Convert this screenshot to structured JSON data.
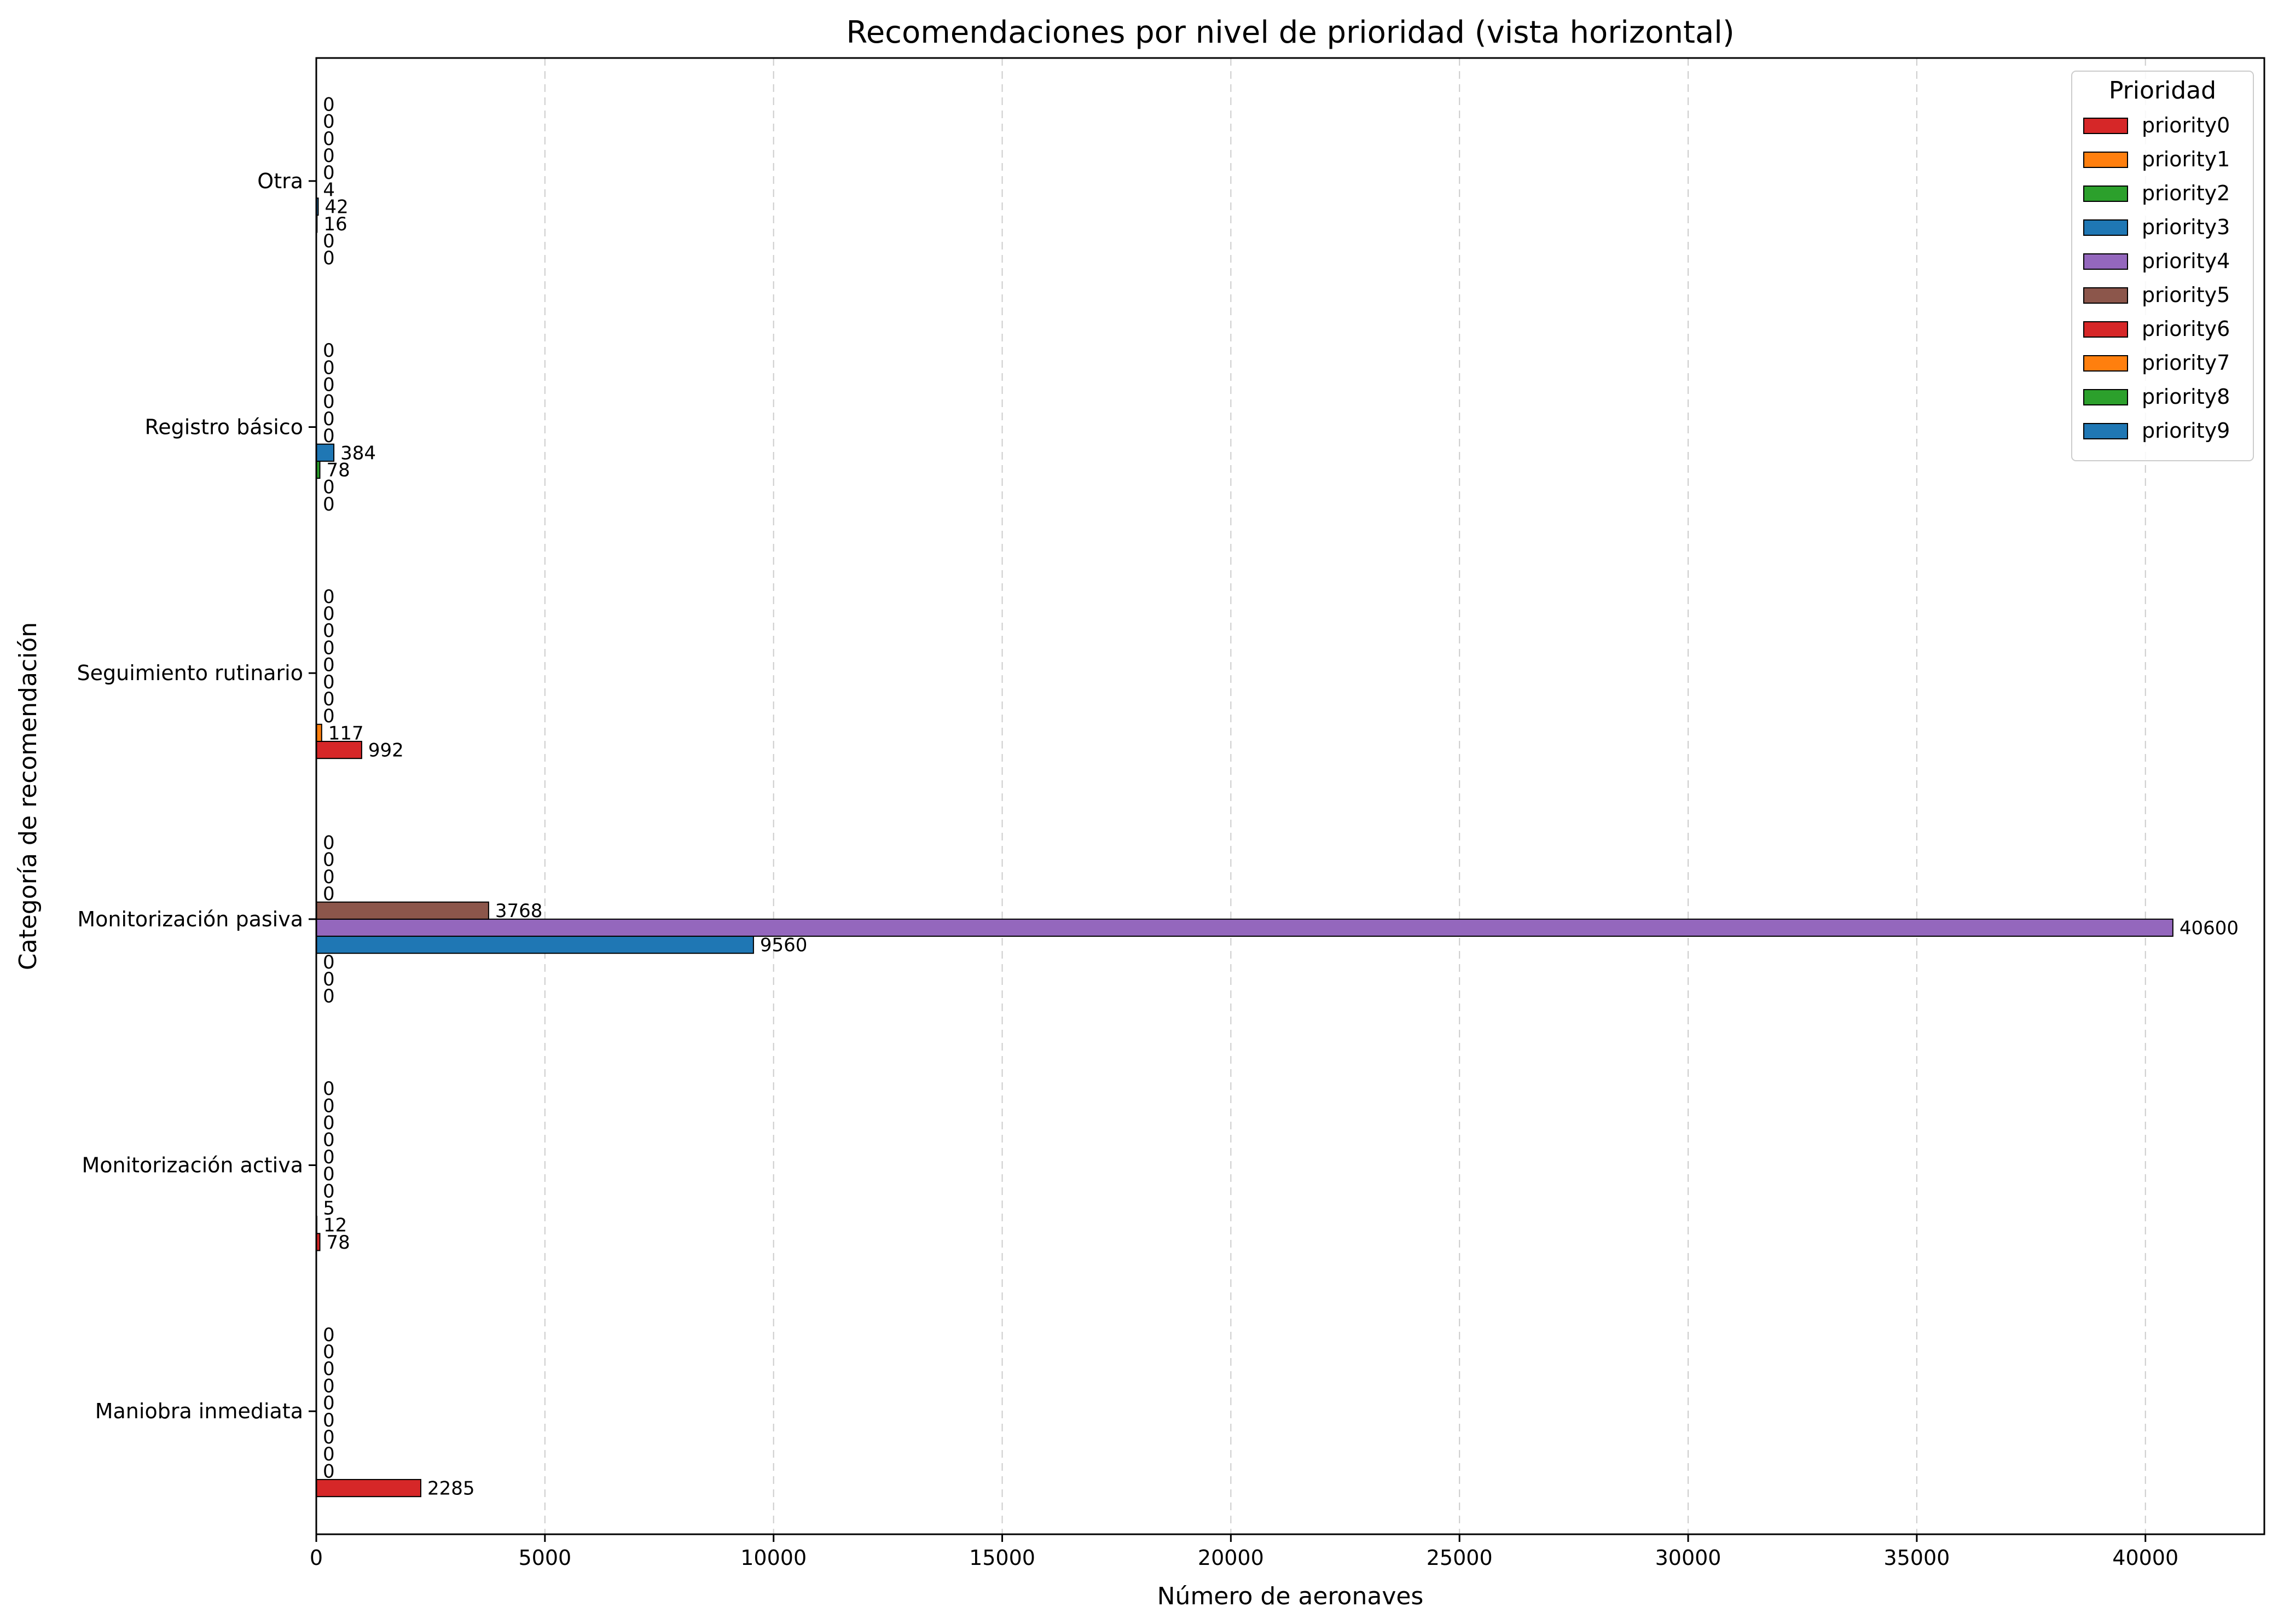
{
  "chart_data": {
    "type": "bar",
    "orientation": "horizontal",
    "title": "Recomendaciones por nivel de prioridad (vista horizontal)",
    "xlabel": "Número de aeronaves",
    "ylabel": "Categoría de recomendación",
    "xlim": [
      0,
      42600
    ],
    "xticks": [
      0,
      5000,
      10000,
      15000,
      20000,
      25000,
      30000,
      35000,
      40000
    ],
    "grid": "x",
    "legend_title": "Prioridad",
    "legend_position": "top-right",
    "categories": [
      "Maniobra inmediata",
      "Monitorización activa",
      "Monitorización pasiva",
      "Seguimiento rutinario",
      "Registro básico",
      "Otra"
    ],
    "series": [
      {
        "name": "priority0",
        "color": "#d62728",
        "values": [
          2285,
          78,
          0,
          992,
          0,
          0
        ]
      },
      {
        "name": "priority1",
        "color": "#ff7f0e",
        "values": [
          0,
          12,
          0,
          117,
          0,
          0
        ]
      },
      {
        "name": "priority2",
        "color": "#2ca02c",
        "values": [
          0,
          5,
          0,
          0,
          78,
          16
        ]
      },
      {
        "name": "priority3",
        "color": "#1f77b4",
        "values": [
          0,
          0,
          9560,
          0,
          384,
          42
        ]
      },
      {
        "name": "priority4",
        "color": "#9467bd",
        "values": [
          0,
          0,
          40600,
          0,
          0,
          4
        ]
      },
      {
        "name": "priority5",
        "color": "#8c564b",
        "values": [
          0,
          0,
          3768,
          0,
          0,
          0
        ]
      },
      {
        "name": "priority6",
        "color": "#d62728",
        "values": [
          0,
          0,
          0,
          0,
          0,
          0
        ]
      },
      {
        "name": "priority7",
        "color": "#ff7f0e",
        "values": [
          0,
          0,
          0,
          0,
          0,
          0
        ]
      },
      {
        "name": "priority8",
        "color": "#2ca02c",
        "values": [
          0,
          0,
          0,
          0,
          0,
          0
        ]
      },
      {
        "name": "priority9",
        "color": "#1f77b4",
        "values": [
          0,
          0,
          0,
          0,
          0,
          0
        ]
      }
    ]
  }
}
